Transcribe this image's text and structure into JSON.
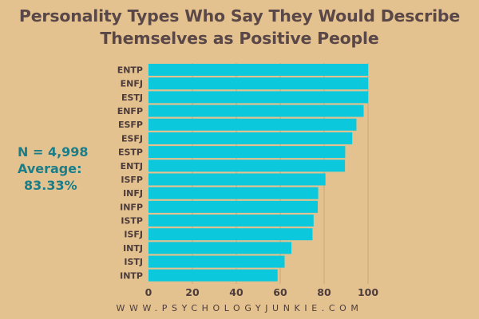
{
  "chart_data": {
    "type": "bar",
    "orientation": "horizontal",
    "title": "Personality Types Who Say They Would Describe Themselves as Positive People",
    "title_lines": [
      "Personality Types Who Say They Would Describe",
      "Themselves as Positive People"
    ],
    "xlabel": "",
    "ylabel": "",
    "xlim": [
      0,
      100
    ],
    "xticks": [
      0,
      20,
      40,
      60,
      80,
      100
    ],
    "grid": true,
    "categories": [
      "ENTP",
      "ENFJ",
      "ESTJ",
      "ENFP",
      "ESFP",
      "ESFJ",
      "ESTP",
      "ENTJ",
      "ISFP",
      "INFJ",
      "INFP",
      "ISTP",
      "ISFJ",
      "INTJ",
      "ISTJ",
      "INTP"
    ],
    "values": [
      100,
      100,
      100,
      98,
      94.7,
      92.8,
      89.6,
      89.5,
      80.6,
      77.3,
      77.1,
      75.2,
      74.7,
      65.1,
      62,
      58.8
    ],
    "colors": {
      "bar": "#0BC8DC",
      "grid": "#C9A57A",
      "background": "#E4C28F"
    }
  },
  "stats": {
    "n": "N = 4,998",
    "average_label": "Average:",
    "average_value": "83.33%"
  },
  "footer": "WWW.PSYCHOLOGYJUNKIE.COM"
}
